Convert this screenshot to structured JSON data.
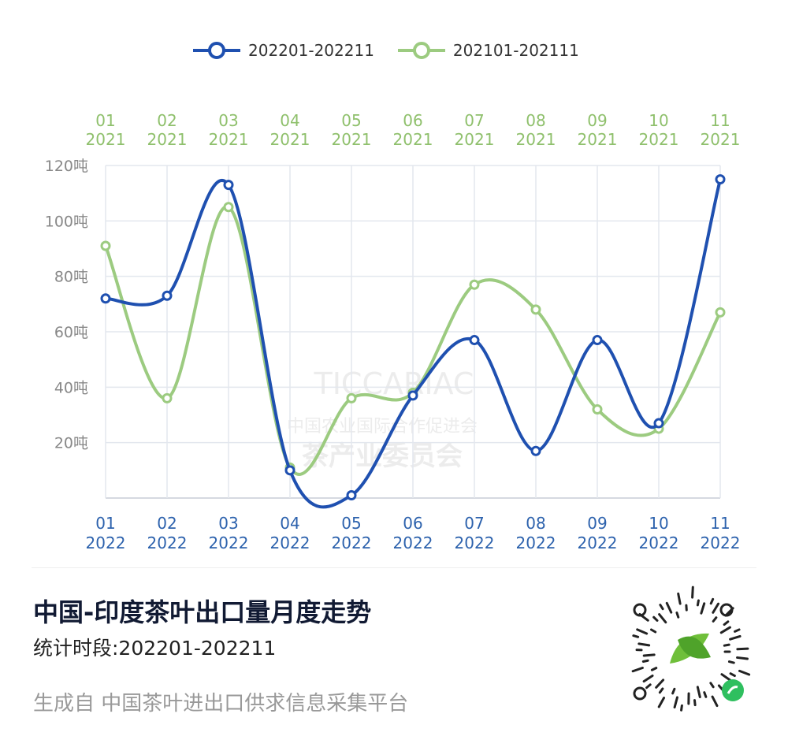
{
  "chart_data": {
    "type": "line",
    "smooth": true,
    "title": "中国-印度茶叶出口量月度走势",
    "subtitle": "统计时段:202201-202211",
    "x_bottom": {
      "months": [
        "01",
        "02",
        "03",
        "04",
        "05",
        "06",
        "07",
        "08",
        "09",
        "10",
        "11"
      ],
      "year": "2022"
    },
    "x_top": {
      "months": [
        "01",
        "02",
        "03",
        "04",
        "05",
        "06",
        "07",
        "08",
        "09",
        "10",
        "11"
      ],
      "year": "2021"
    },
    "y_ticks": [
      "20吨",
      "40吨",
      "60吨",
      "80吨",
      "100吨",
      "120吨"
    ],
    "y_tick_values": [
      20,
      40,
      60,
      80,
      100,
      120
    ],
    "ylim": [
      0,
      120
    ],
    "grid": true,
    "legend_position": "top",
    "series": [
      {
        "name": "202201-202211",
        "color": "#1f50b0",
        "values": [
          72,
          73,
          113,
          10,
          1,
          37,
          57,
          17,
          57,
          27,
          115
        ]
      },
      {
        "name": "202101-202111",
        "color": "#9ccb80",
        "values": [
          91,
          36,
          105,
          11,
          36,
          38,
          77,
          68,
          32,
          25,
          67
        ]
      }
    ]
  },
  "footer": {
    "title": "中国-印度茶叶出口量月度走势",
    "subtitle": "统计时段:202201-202211",
    "source": "生成自 中国茶叶进出口供求信息采集平台"
  },
  "watermark": {
    "latin": "TICCARIAC",
    "line1": "中国农业国际合作促进会",
    "line2": "茶产业委员会"
  },
  "colors": {
    "bottom_axis": "#2d62ad",
    "top_axis": "#8fc06c",
    "grid": "#e3e7ee"
  },
  "icons": {
    "qr": "mini-program-qr-code-icon"
  }
}
